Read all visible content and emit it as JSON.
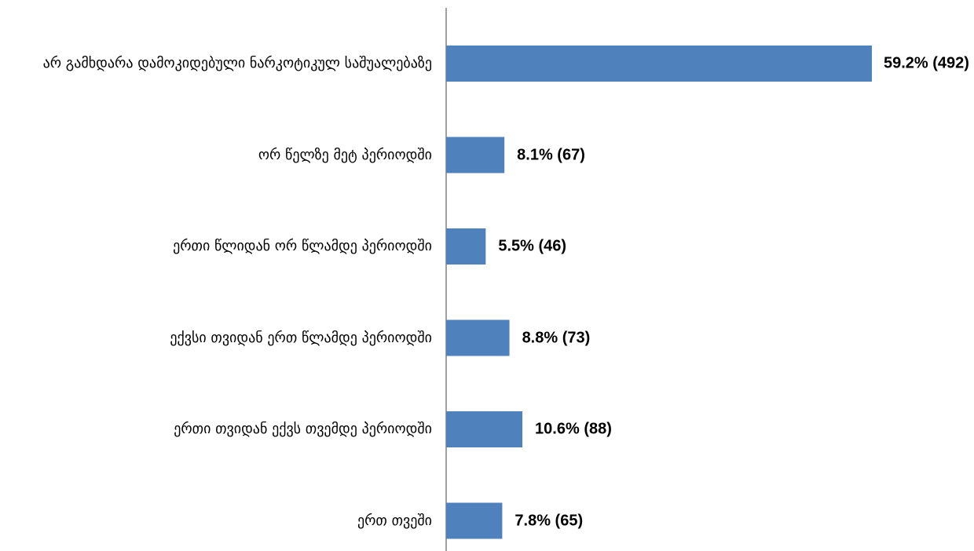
{
  "chart_data": {
    "type": "hbar",
    "categories": [
      "არ გამხდარა დამოკიდებული ნარკოტიკულ საშუალებაზე",
      "ორ წელზე მეტ პერიოდში",
      "ერთი წლიდან ორ წლამდე პერიოდში",
      "ექვსი თვიდან ერთ წლამდე პერიოდში",
      "ერთი თვიდან ექვს თვემდე პერიოდში",
      "ერთ თვეში"
    ],
    "values": [
      59.2,
      8.1,
      5.5,
      8.8,
      10.6,
      7.8
    ],
    "value_labels": [
      "59.2% (492)",
      "8.1% (67)",
      "5.5% (46)",
      "8.8% (73)",
      "10.6% (88)",
      "7.8% (65)"
    ],
    "color": "#4f81bd"
  }
}
